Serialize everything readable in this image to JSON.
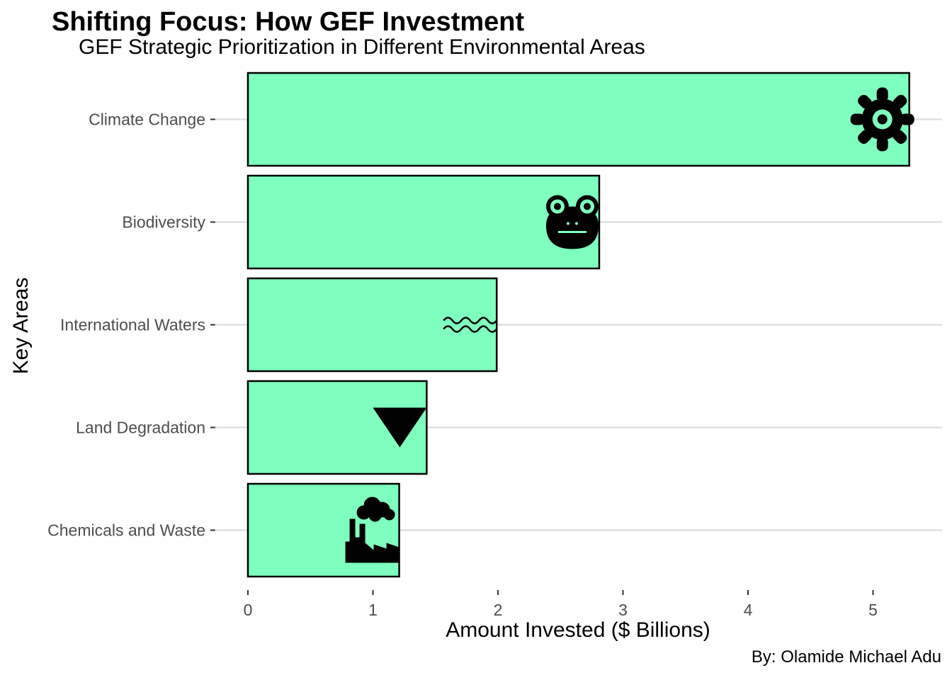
{
  "chart_data": {
    "type": "bar",
    "orientation": "horizontal",
    "title": "Shifting Focus: How GEF Investment",
    "subtitle": "GEF Strategic Prioritization in Different Environmental Areas",
    "xlabel": "Amount Invested ($ Billions)",
    "ylabel": "Key Areas",
    "caption": "By: Olamide Michael Adu",
    "categories": [
      "Climate Change",
      "Biodiversity",
      "International Waters",
      "Land Degradation",
      "Chemicals and Waste"
    ],
    "values": [
      5.29,
      2.81,
      1.99,
      1.43,
      1.21
    ],
    "icons": [
      "gear-icon",
      "frog-icon",
      "water-waves-icon",
      "down-triangle-icon",
      "factory-icon"
    ],
    "xticks": [
      0,
      1,
      2,
      3,
      4,
      5
    ],
    "xlim": [
      0,
      5.5
    ],
    "grid": "horizontal major gridlines",
    "colors": {
      "bar_fill": "#7fffbf",
      "bar_stroke": "#000000",
      "icon": "#000000"
    }
  }
}
